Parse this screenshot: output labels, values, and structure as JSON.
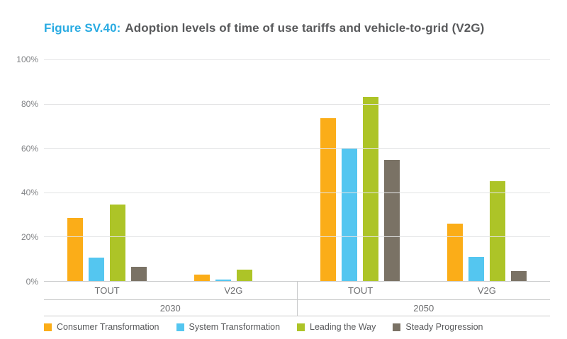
{
  "title": {
    "prefix": "Figure SV.40:",
    "text": "Adoption levels of time of use tariffs and vehicle-to-grid (V2G)"
  },
  "chart_data": {
    "type": "bar",
    "title": "Adoption levels of time of use tariffs and vehicle-to-grid (V2G)",
    "xlabel": "",
    "ylabel": "",
    "ylim": [
      0,
      100
    ],
    "yticks": [
      "0%",
      "20%",
      "40%",
      "60%",
      "80%",
      "100%"
    ],
    "grid": true,
    "legend_position": "bottom",
    "year_groups": [
      {
        "year": "2030",
        "categories": [
          "TOUT",
          "V2G"
        ]
      },
      {
        "year": "2050",
        "categories": [
          "TOUT",
          "V2G"
        ]
      }
    ],
    "categories": [
      "2030 TOUT",
      "2030 V2G",
      "2050 TOUT",
      "2050 V2G"
    ],
    "series": [
      {
        "name": "Consumer Transformation",
        "color": "#FBAD18",
        "values": [
          28.5,
          3,
          73.5,
          26
        ]
      },
      {
        "name": "System Transformation",
        "color": "#54C6F0",
        "values": [
          10.5,
          0.5,
          60,
          11
        ]
      },
      {
        "name": "Leading the Way",
        "color": "#ADC427",
        "values": [
          34.5,
          5,
          83,
          45
        ]
      },
      {
        "name": "Steady Progression",
        "color": "#7A7265",
        "values": [
          6.5,
          0,
          54.5,
          4.5
        ]
      }
    ]
  }
}
